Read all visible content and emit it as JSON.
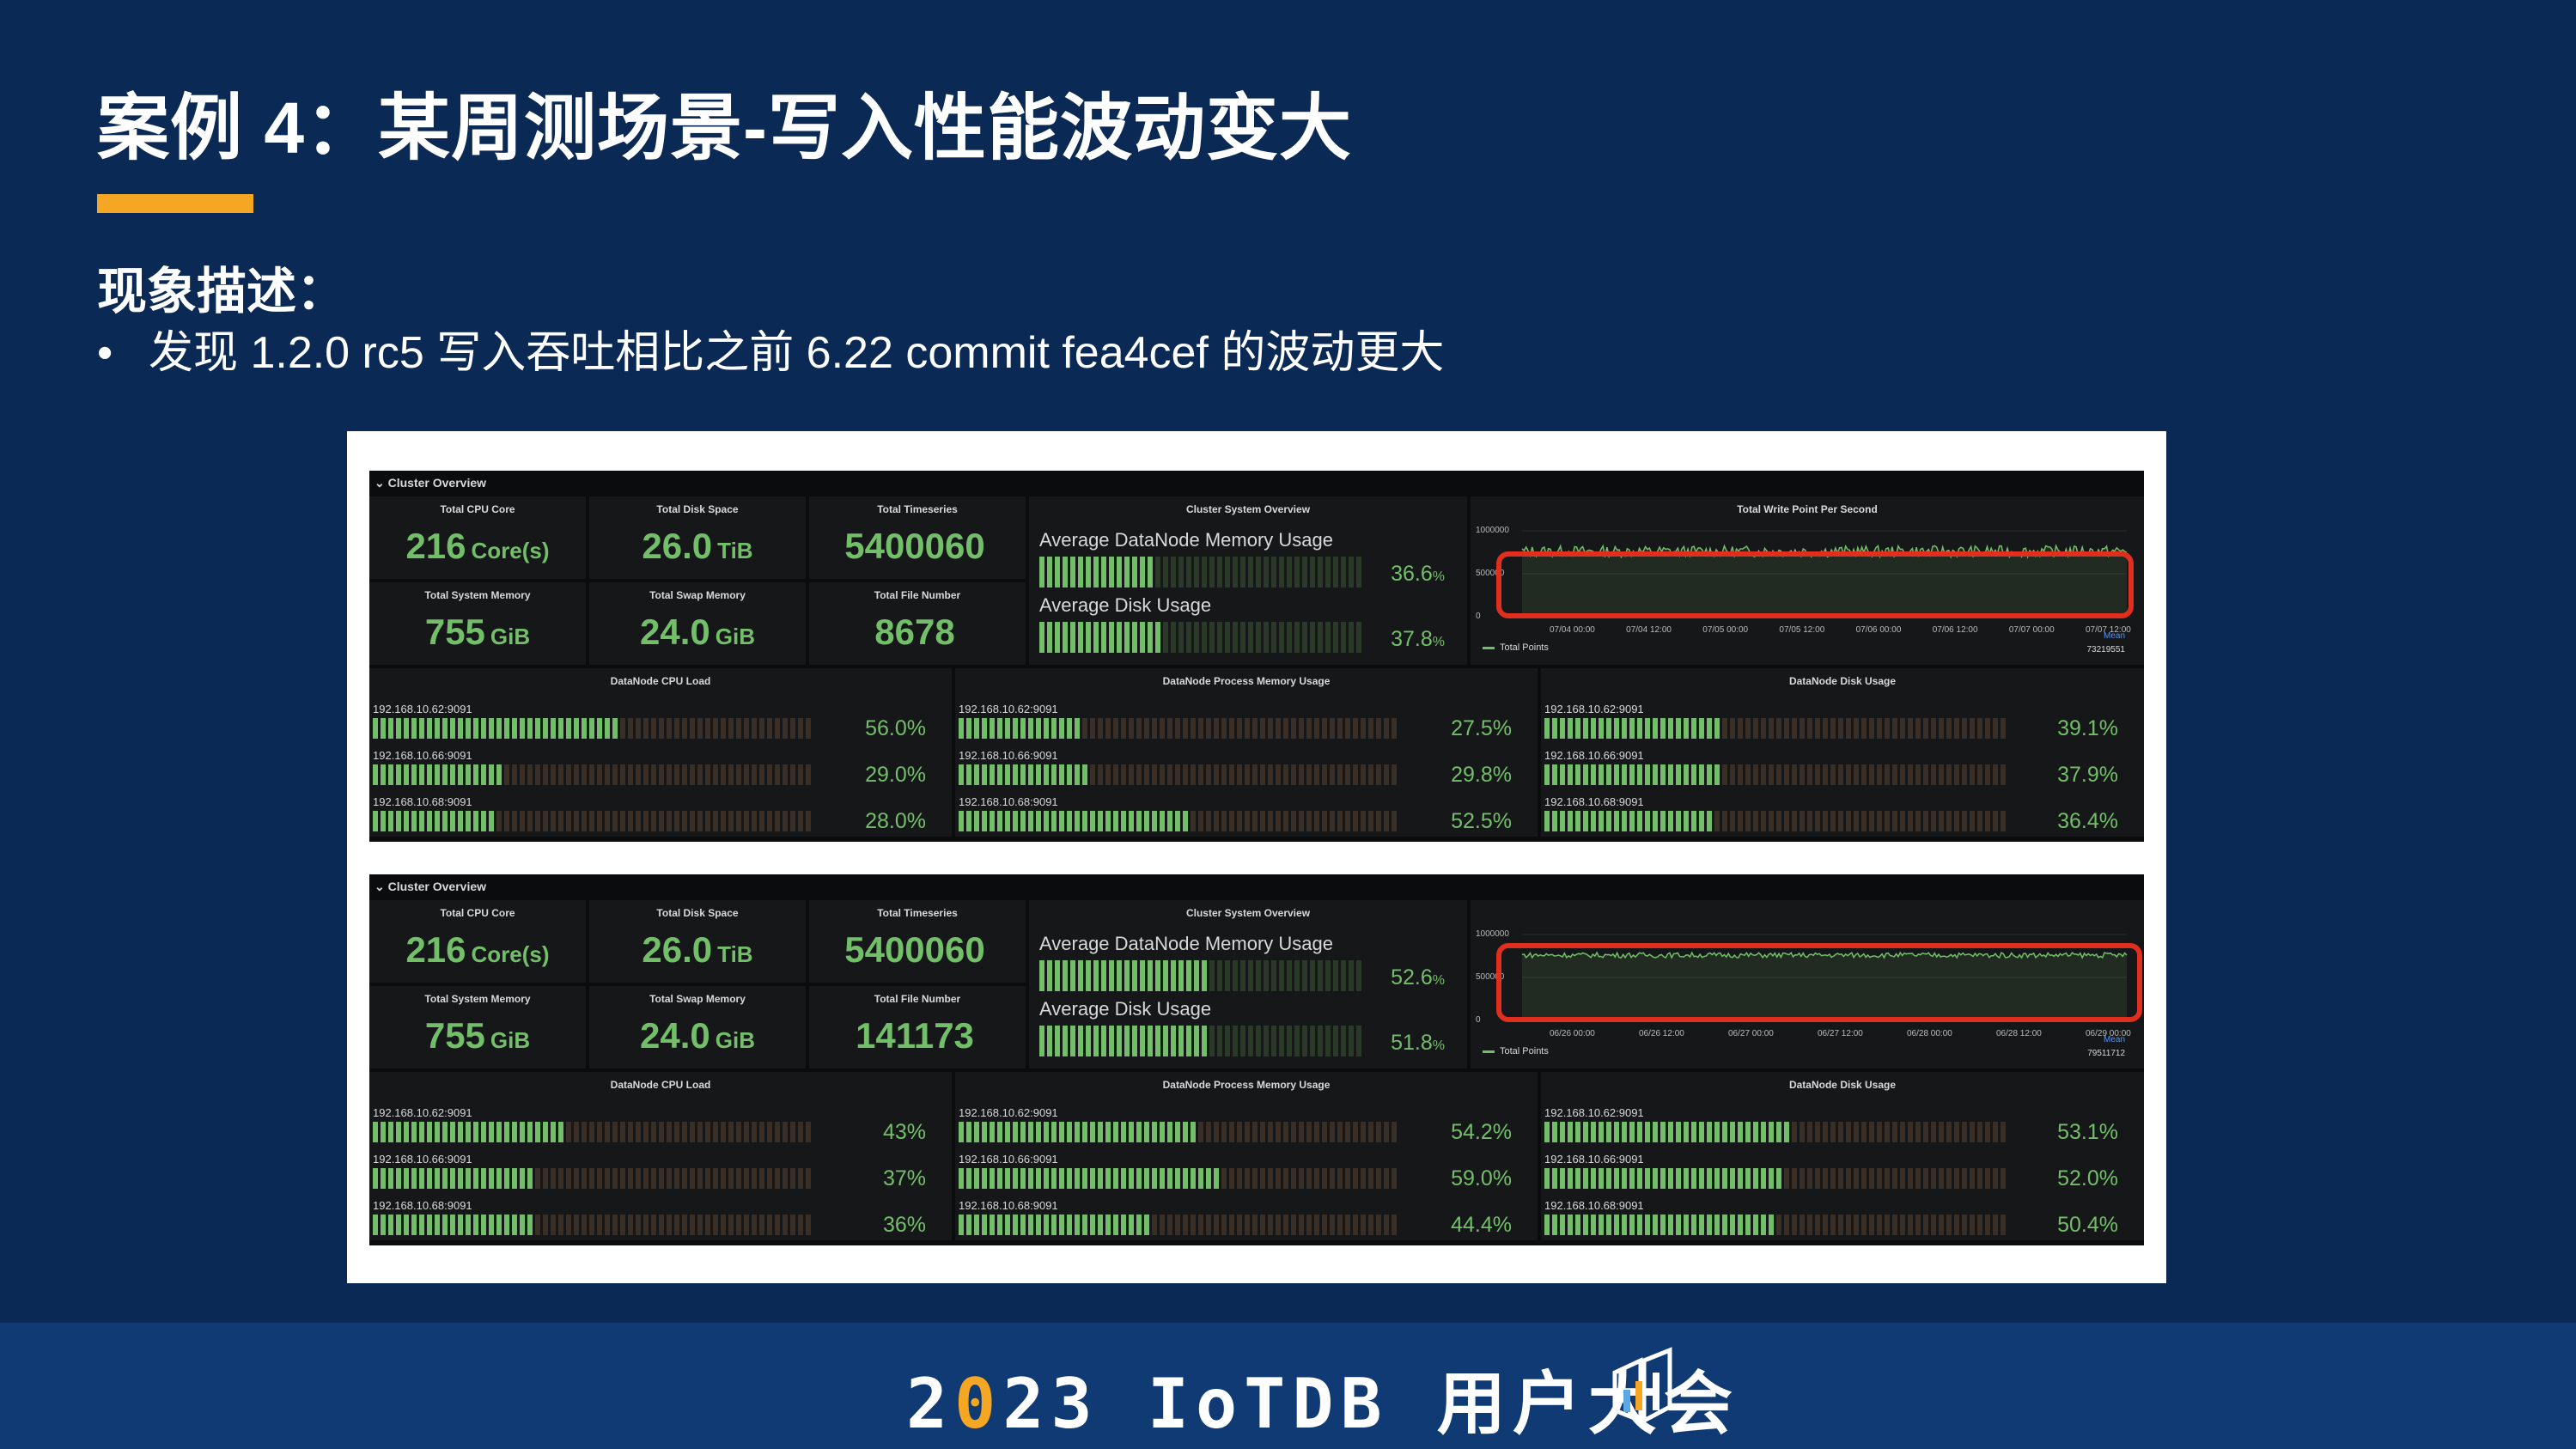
{
  "slide": {
    "title": "案例 4：某周测场景-写入性能波动变大",
    "subtitle": "现象描述：",
    "bullet_symbol": "•",
    "bullet": "发现 1.2.0 rc5 写入吞吐相比之前 6.22 commit fea4cef 的波动更大"
  },
  "dashboards": [
    {
      "row_title": "Cluster Overview",
      "stats": [
        {
          "label": "Total CPU Core",
          "value": "216",
          "unit": "Core(s)"
        },
        {
          "label": "Total Disk Space",
          "value": "26.0",
          "unit": "TiB"
        },
        {
          "label": "Total Timeseries",
          "value": "5400060",
          "unit": ""
        },
        {
          "label": "Total System Memory",
          "value": "755",
          "unit": "GiB"
        },
        {
          "label": "Total Swap Memory",
          "value": "24.0",
          "unit": "GiB"
        },
        {
          "label": "Total File Number",
          "value": "8678",
          "unit": ""
        }
      ],
      "system_overview": {
        "title": "Cluster System Overview",
        "memory_label": "Average DataNode Memory Usage",
        "memory_pct": "36.6",
        "memory_level": 0.366,
        "disk_label": "Average Disk Usage",
        "disk_pct": "37.8",
        "disk_level": 0.378,
        "pct_sign": "%"
      },
      "write_chart": {
        "title": "Total Write Point Per Second",
        "y_ticks": [
          "1000000",
          "500000",
          "0"
        ],
        "x_ticks": [
          "07/04 00:00",
          "07/04 12:00",
          "07/05 00:00",
          "07/05 12:00",
          "07/06 00:00",
          "07/06 12:00",
          "07/07 00:00",
          "07/07 12:00"
        ],
        "legend": "Total Points",
        "mean_label": "Mean",
        "mean_value": "73219551",
        "jitter": 0.55
      },
      "groups": [
        {
          "title": "DataNode CPU Load",
          "items": [
            {
              "ip": "192.168.10.62:9091",
              "pct": "56.0%",
              "level": 0.56
            },
            {
              "ip": "192.168.10.66:9091",
              "pct": "29.0%",
              "level": 0.29
            },
            {
              "ip": "192.168.10.68:9091",
              "pct": "28.0%",
              "level": 0.28
            }
          ]
        },
        {
          "title": "DataNode Process Memory Usage",
          "items": [
            {
              "ip": "192.168.10.62:9091",
              "pct": "27.5%",
              "level": 0.275
            },
            {
              "ip": "192.168.10.66:9091",
              "pct": "29.8%",
              "level": 0.298
            },
            {
              "ip": "192.168.10.68:9091",
              "pct": "52.5%",
              "level": 0.525
            }
          ]
        },
        {
          "title": "DataNode Disk Usage",
          "items": [
            {
              "ip": "192.168.10.62:9091",
              "pct": "39.1%",
              "level": 0.391
            },
            {
              "ip": "192.168.10.66:9091",
              "pct": "37.9%",
              "level": 0.379
            },
            {
              "ip": "192.168.10.68:9091",
              "pct": "36.4%",
              "level": 0.364
            }
          ]
        }
      ]
    },
    {
      "row_title": "Cluster Overview",
      "stats": [
        {
          "label": "Total CPU Core",
          "value": "216",
          "unit": "Core(s)"
        },
        {
          "label": "Total Disk Space",
          "value": "26.0",
          "unit": "TiB"
        },
        {
          "label": "Total Timeseries",
          "value": "5400060",
          "unit": ""
        },
        {
          "label": "Total System Memory",
          "value": "755",
          "unit": "GiB"
        },
        {
          "label": "Total Swap Memory",
          "value": "24.0",
          "unit": "GiB"
        },
        {
          "label": "Total File Number",
          "value": "141173",
          "unit": ""
        }
      ],
      "system_overview": {
        "title": "Cluster System Overview",
        "memory_label": "Average DataNode Memory Usage",
        "memory_pct": "52.6",
        "memory_level": 0.526,
        "disk_label": "Average Disk Usage",
        "disk_pct": "51.8",
        "disk_level": 0.518,
        "pct_sign": "%"
      },
      "write_chart": {
        "title": "",
        "y_ticks": [
          "1000000",
          "500000",
          "0"
        ],
        "x_ticks": [
          "06/26 00:00",
          "06/26 12:00",
          "06/27 00:00",
          "06/27 12:00",
          "06/28 00:00",
          "06/28 12:00",
          "06/29 00:00"
        ],
        "legend": "Total Points",
        "mean_label": "Mean",
        "mean_value": "79511712",
        "jitter": 0.25
      },
      "groups": [
        {
          "title": "DataNode CPU Load",
          "items": [
            {
              "ip": "192.168.10.62:9091",
              "pct": "43%",
              "level": 0.43
            },
            {
              "ip": "192.168.10.66:9091",
              "pct": "37%",
              "level": 0.37
            },
            {
              "ip": "192.168.10.68:9091",
              "pct": "36%",
              "level": 0.36
            }
          ]
        },
        {
          "title": "DataNode Process Memory Usage",
          "items": [
            {
              "ip": "192.168.10.62:9091",
              "pct": "54.2%",
              "level": 0.542
            },
            {
              "ip": "192.168.10.66:9091",
              "pct": "59.0%",
              "level": 0.59
            },
            {
              "ip": "192.168.10.68:9091",
              "pct": "44.4%",
              "level": 0.444
            }
          ]
        },
        {
          "title": "DataNode Disk Usage",
          "items": [
            {
              "ip": "192.168.10.62:9091",
              "pct": "53.1%",
              "level": 0.531
            },
            {
              "ip": "192.168.10.66:9091",
              "pct": "52.0%",
              "level": 0.52
            },
            {
              "ip": "192.168.10.68:9091",
              "pct": "50.4%",
              "level": 0.504
            }
          ]
        }
      ]
    }
  ],
  "footer": {
    "pre": "2",
    "accent": "0",
    "post": "23 IoTDB 用户大会",
    "logo_icon": "iotdb-logo-icon"
  },
  "colors": {
    "background": "#0a2a55",
    "footer": "#0f3a73",
    "accent": "#f5a623",
    "gauge_green": "#73bf69",
    "highlight_red": "#e02f1f"
  }
}
